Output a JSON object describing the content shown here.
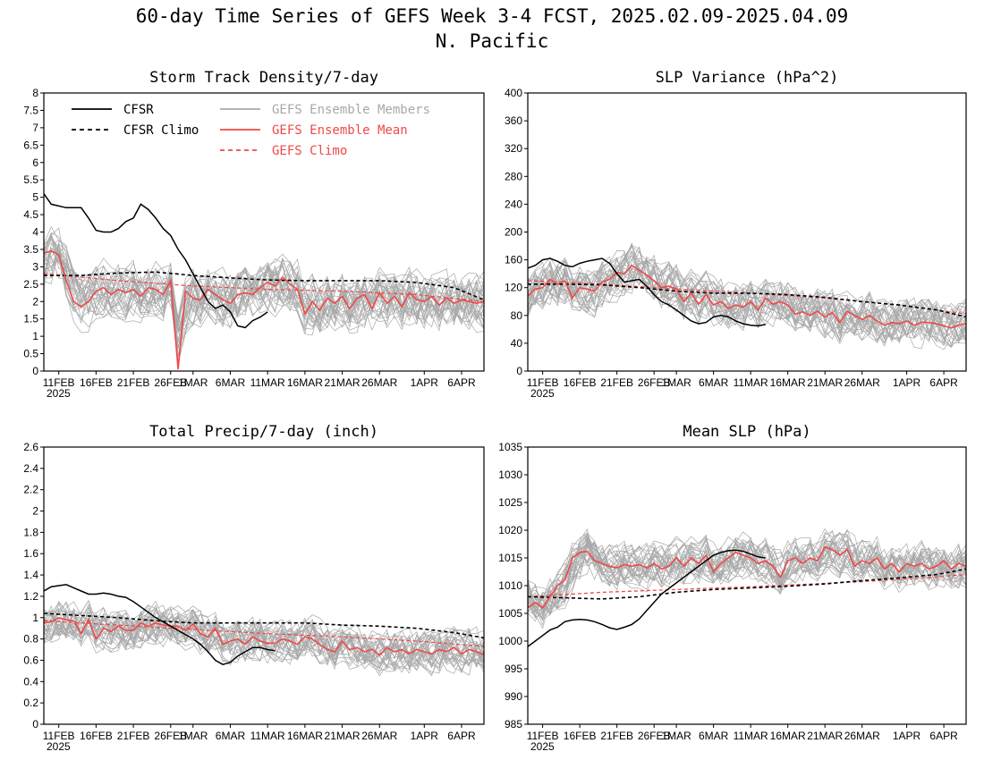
{
  "page": {
    "title_line1": "60-day Time Series of GEFS Week 3-4 FCST, 2025.02.09-2025.04.09",
    "title_line2": "N. Pacific"
  },
  "colors": {
    "cfsr": "#000000",
    "cfsr_climo": "#000000",
    "members": "#a8a8a8",
    "ens_mean": "#f04848",
    "gefs_climo": "#f04848"
  },
  "legend": {
    "cfsr": "CFSR",
    "cfsr_climo": "CFSR Climo",
    "members": "GEFS Ensemble Members",
    "ens_mean": "GEFS Ensemble Mean",
    "gefs_climo": "GEFS Climo"
  },
  "x_axis": {
    "day_range": [
      0,
      59
    ],
    "ticks": [
      {
        "day": 2,
        "label": "11FEB"
      },
      {
        "day": 7,
        "label": "16FEB"
      },
      {
        "day": 12,
        "label": "21FEB"
      },
      {
        "day": 17,
        "label": "26FEB"
      },
      {
        "day": 20,
        "label": "1MAR"
      },
      {
        "day": 25,
        "label": "6MAR"
      },
      {
        "day": 30,
        "label": "11MAR"
      },
      {
        "day": 35,
        "label": "16MAR"
      },
      {
        "day": 40,
        "label": "21MAR"
      },
      {
        "day": 45,
        "label": "26MAR"
      },
      {
        "day": 51,
        "label": "1APR"
      },
      {
        "day": 56,
        "label": "6APR"
      }
    ],
    "year_label": "2025"
  },
  "chart_data": [
    {
      "type": "line",
      "title": "Storm Track Density/7-day",
      "ylim": [
        0,
        8
      ],
      "yticks": [
        "0",
        "0.5",
        "1",
        "1.5",
        "2",
        "2.5",
        "3",
        "3.5",
        "4",
        "4.5",
        "5",
        "5.5",
        "6",
        "6.5",
        "7",
        "7.5",
        "8"
      ],
      "members_spread": {
        "center": 2.3,
        "amplitude": 1.4
      },
      "series": [
        {
          "name": "CFSR",
          "x": [
            0,
            1,
            3,
            5,
            6,
            7,
            8,
            9,
            10,
            11,
            12,
            13,
            14,
            15,
            16,
            17,
            18,
            19,
            20,
            21,
            22,
            23,
            24,
            25,
            26,
            27,
            28,
            29,
            30
          ],
          "y": [
            5.1,
            4.8,
            4.7,
            4.7,
            4.4,
            4.05,
            4.0,
            4.0,
            4.1,
            4.3,
            4.4,
            4.8,
            4.65,
            4.4,
            4.1,
            3.9,
            3.5,
            3.2,
            2.8,
            2.4,
            2.0,
            1.8,
            1.9,
            1.7,
            1.3,
            1.25,
            1.45,
            1.55,
            1.7
          ]
        },
        {
          "name": "CFSR Climo",
          "x": [
            0,
            5,
            10,
            15,
            20,
            25,
            30,
            35,
            40,
            45,
            50,
            55,
            59
          ],
          "y": [
            2.75,
            2.75,
            2.82,
            2.85,
            2.75,
            2.68,
            2.62,
            2.6,
            2.6,
            2.6,
            2.55,
            2.4,
            2.05
          ]
        },
        {
          "name": "GEFS Ensemble Mean",
          "x": [
            0,
            1,
            2,
            3,
            4,
            5,
            6,
            7,
            8,
            9,
            10,
            11,
            12,
            13,
            14,
            15,
            16,
            17,
            18,
            19,
            20,
            21,
            22,
            23,
            24,
            25,
            26,
            27,
            28,
            29,
            30,
            31,
            32,
            33,
            34,
            35,
            36,
            37,
            38,
            39,
            40,
            41,
            42,
            43,
            44,
            45,
            46,
            47,
            48,
            49,
            50,
            51,
            52,
            53,
            54,
            55,
            56,
            57,
            58,
            59
          ],
          "y": [
            3.4,
            3.45,
            3.35,
            2.6,
            2.0,
            1.85,
            2.0,
            2.3,
            2.4,
            2.2,
            2.35,
            2.25,
            2.35,
            2.15,
            2.4,
            2.35,
            2.2,
            2.6,
            0.05,
            2.3,
            2.1,
            2.05,
            2.35,
            2.2,
            2.05,
            1.95,
            2.2,
            2.25,
            2.2,
            2.4,
            2.55,
            2.45,
            2.7,
            2.5,
            2.35,
            1.65,
            2.0,
            1.75,
            2.1,
            1.95,
            2.15,
            1.8,
            2.1,
            2.2,
            1.8,
            2.25,
            1.95,
            2.15,
            1.85,
            2.25,
            2.05,
            2.0,
            2.15,
            1.9,
            2.1,
            1.95,
            2.05,
            2.0,
            1.95,
            2.0
          ]
        },
        {
          "name": "GEFS Climo",
          "x": [
            0,
            10,
            20,
            30,
            40,
            50,
            59
          ],
          "y": [
            2.8,
            2.6,
            2.45,
            2.35,
            2.3,
            2.2,
            2.0
          ]
        }
      ]
    },
    {
      "type": "line",
      "title": "SLP Variance (hPa^2)",
      "ylim": [
        0,
        400
      ],
      "yticks": [
        "0",
        "40",
        "80",
        "120",
        "160",
        "200",
        "240",
        "280",
        "320",
        "360",
        "400"
      ],
      "members_spread": {
        "center": 105,
        "amplitude": 60
      },
      "series": [
        {
          "name": "CFSR",
          "x": [
            0,
            1,
            2,
            3,
            4,
            5,
            6,
            7,
            8,
            9,
            10,
            11,
            12,
            13,
            14,
            15,
            16,
            17,
            18,
            19,
            20,
            21,
            22,
            23,
            24,
            25,
            26,
            27,
            28,
            29,
            30,
            31,
            32
          ],
          "y": [
            148,
            152,
            160,
            162,
            158,
            152,
            150,
            155,
            158,
            160,
            162,
            155,
            140,
            128,
            130,
            132,
            122,
            110,
            100,
            95,
            88,
            80,
            72,
            68,
            70,
            78,
            80,
            78,
            72,
            68,
            66,
            65,
            67
          ]
        },
        {
          "name": "CFSR Climo",
          "x": [
            0,
            5,
            10,
            15,
            20,
            25,
            30,
            35,
            40,
            45,
            50,
            55,
            59
          ],
          "y": [
            125,
            125,
            124,
            120,
            115,
            112,
            112,
            110,
            106,
            100,
            95,
            88,
            78
          ]
        },
        {
          "name": "GEFS Ensemble Mean",
          "x": [
            0,
            1,
            2,
            3,
            4,
            5,
            6,
            7,
            8,
            9,
            10,
            11,
            12,
            13,
            14,
            15,
            16,
            17,
            18,
            19,
            20,
            21,
            22,
            23,
            24,
            25,
            26,
            27,
            28,
            29,
            30,
            31,
            32,
            33,
            34,
            35,
            36,
            37,
            38,
            39,
            40,
            41,
            42,
            43,
            44,
            45,
            46,
            47,
            48,
            49,
            50,
            51,
            52,
            53,
            54,
            55,
            56,
            57,
            58,
            59
          ],
          "y": [
            108,
            118,
            120,
            132,
            125,
            130,
            105,
            120,
            118,
            115,
            128,
            132,
            142,
            140,
            152,
            145,
            138,
            130,
            120,
            122,
            118,
            100,
            112,
            96,
            110,
            95,
            100,
            90,
            95,
            92,
            100,
            88,
            105,
            96,
            100,
            95,
            82,
            85,
            80,
            86,
            78,
            84,
            70,
            86,
            80,
            74,
            80,
            72,
            66,
            70,
            68,
            72,
            66,
            70,
            70,
            68,
            65,
            62,
            66,
            68
          ]
        },
        {
          "name": "GEFS Climo",
          "x": [
            0,
            10,
            20,
            30,
            40,
            50,
            59
          ],
          "y": [
            130,
            125,
            118,
            112,
            105,
            95,
            82
          ]
        }
      ]
    },
    {
      "type": "line",
      "title": "Total Precip/7-day (inch)",
      "ylim": [
        0,
        2.6
      ],
      "yticks": [
        "0",
        "0.2",
        "0.4",
        "0.6",
        "0.8",
        "1",
        "1.2",
        "1.4",
        "1.6",
        "1.8",
        "2",
        "2.2",
        "2.4",
        "2.6"
      ],
      "members_spread": {
        "center": 0.85,
        "amplitude": 0.35
      },
      "series": [
        {
          "name": "CFSR",
          "x": [
            0,
            1,
            2,
            3,
            4,
            5,
            6,
            7,
            8,
            9,
            10,
            11,
            12,
            13,
            14,
            15,
            16,
            17,
            18,
            19,
            20,
            21,
            22,
            23,
            24,
            25,
            26,
            27,
            28,
            29,
            30,
            31
          ],
          "y": [
            1.25,
            1.29,
            1.3,
            1.31,
            1.28,
            1.25,
            1.22,
            1.22,
            1.23,
            1.22,
            1.2,
            1.19,
            1.15,
            1.1,
            1.05,
            1.0,
            0.96,
            0.92,
            0.88,
            0.84,
            0.8,
            0.75,
            0.68,
            0.6,
            0.56,
            0.58,
            0.64,
            0.68,
            0.72,
            0.72,
            0.7,
            0.69
          ]
        },
        {
          "name": "CFSR Climo",
          "x": [
            0,
            5,
            10,
            15,
            20,
            25,
            30,
            35,
            40,
            45,
            50,
            55,
            59
          ],
          "y": [
            1.04,
            1.02,
            1.0,
            0.97,
            0.95,
            0.95,
            0.95,
            0.95,
            0.93,
            0.92,
            0.9,
            0.86,
            0.81
          ]
        },
        {
          "name": "GEFS Ensemble Mean",
          "x": [
            0,
            1,
            2,
            3,
            4,
            5,
            6,
            7,
            8,
            9,
            10,
            11,
            12,
            13,
            14,
            15,
            16,
            17,
            18,
            19,
            20,
            21,
            22,
            23,
            24,
            25,
            26,
            27,
            28,
            29,
            30,
            31,
            32,
            33,
            34,
            35,
            36,
            37,
            38,
            39,
            40,
            41,
            42,
            43,
            44,
            45,
            46,
            47,
            48,
            49,
            50,
            51,
            52,
            53,
            54,
            55,
            56,
            57,
            58,
            59
          ],
          "y": [
            0.95,
            0.96,
            1.0,
            0.98,
            0.97,
            0.85,
            0.98,
            0.8,
            0.9,
            0.87,
            0.92,
            0.88,
            0.88,
            0.95,
            0.92,
            0.95,
            0.93,
            0.92,
            0.92,
            0.88,
            0.94,
            0.85,
            0.82,
            0.9,
            0.75,
            0.78,
            0.8,
            0.75,
            0.82,
            0.78,
            0.76,
            0.76,
            0.8,
            0.78,
            0.75,
            0.82,
            0.8,
            0.75,
            0.7,
            0.68,
            0.78,
            0.7,
            0.72,
            0.68,
            0.7,
            0.65,
            0.72,
            0.68,
            0.7,
            0.66,
            0.7,
            0.68,
            0.66,
            0.7,
            0.68,
            0.72,
            0.66,
            0.7,
            0.68,
            0.65
          ]
        },
        {
          "name": "GEFS Climo",
          "x": [
            0,
            10,
            20,
            30,
            40,
            50,
            59
          ],
          "y": [
            0.97,
            0.93,
            0.89,
            0.85,
            0.82,
            0.78,
            0.73
          ]
        }
      ]
    },
    {
      "type": "line",
      "title": "Mean SLP (hPa)",
      "ylim": [
        985,
        1035
      ],
      "yticks": [
        "985",
        "990",
        "995",
        "1000",
        "1005",
        "1010",
        "1015",
        "1020",
        "1025",
        "1030",
        "1035"
      ],
      "members_spread": {
        "center": 1012,
        "amplitude": 7
      },
      "series": [
        {
          "name": "CFSR",
          "x": [
            0,
            1,
            2,
            3,
            4,
            5,
            6,
            7,
            8,
            9,
            10,
            11,
            12,
            13,
            14,
            15,
            16,
            17,
            18,
            19,
            20,
            21,
            22,
            23,
            24,
            25,
            26,
            27,
            28,
            29,
            30,
            31,
            32
          ],
          "y": [
            999,
            1000,
            1001,
            1002,
            1002.5,
            1003.5,
            1003.8,
            1003.9,
            1003.8,
            1003.5,
            1003,
            1002.4,
            1002.1,
            1002.5,
            1003,
            1004,
            1005.5,
            1007,
            1008.5,
            1009.5,
            1010.5,
            1011.5,
            1012.5,
            1013.5,
            1014.5,
            1015.5,
            1016,
            1016.3,
            1016.4,
            1016.2,
            1015.7,
            1015.2,
            1015.0
          ]
        },
        {
          "name": "CFSR Climo",
          "x": [
            0,
            5,
            10,
            15,
            20,
            25,
            30,
            35,
            40,
            45,
            50,
            55,
            59
          ],
          "y": [
            1008,
            1007.8,
            1007.6,
            1008,
            1008.8,
            1009.3,
            1009.6,
            1009.9,
            1010.3,
            1010.9,
            1011.4,
            1012,
            1013
          ]
        },
        {
          "name": "GEFS Ensemble Mean",
          "x": [
            0,
            1,
            2,
            3,
            4,
            5,
            6,
            7,
            8,
            9,
            10,
            11,
            12,
            13,
            14,
            15,
            16,
            17,
            18,
            19,
            20,
            21,
            22,
            23,
            24,
            25,
            26,
            27,
            28,
            29,
            30,
            31,
            32,
            33,
            34,
            35,
            36,
            37,
            38,
            39,
            40,
            41,
            42,
            43,
            44,
            45,
            46,
            47,
            48,
            49,
            50,
            51,
            52,
            53,
            54,
            55,
            56,
            57,
            58,
            59
          ],
          "y": [
            1006,
            1007,
            1006,
            1008,
            1010,
            1011,
            1015,
            1016,
            1016.2,
            1014.5,
            1014,
            1013.5,
            1013.2,
            1013.8,
            1013.5,
            1013.8,
            1013.2,
            1014,
            1013,
            1013.5,
            1015,
            1013.5,
            1015,
            1014,
            1015.5,
            1012.5,
            1014,
            1015,
            1016,
            1015.5,
            1015,
            1014,
            1014.5,
            1013.5,
            1011.5,
            1014.5,
            1015,
            1014,
            1015,
            1014.5,
            1017,
            1016.5,
            1015.5,
            1016.5,
            1013.5,
            1014.5,
            1014,
            1015,
            1013,
            1014,
            1012.5,
            1014,
            1013.5,
            1014,
            1013,
            1013.5,
            1014.5,
            1013,
            1014,
            1013.5
          ]
        },
        {
          "name": "GEFS Climo",
          "x": [
            0,
            10,
            20,
            30,
            40,
            50,
            59
          ],
          "y": [
            1008,
            1008.8,
            1009.3,
            1009.8,
            1010.4,
            1011.1,
            1012
          ]
        }
      ]
    }
  ]
}
